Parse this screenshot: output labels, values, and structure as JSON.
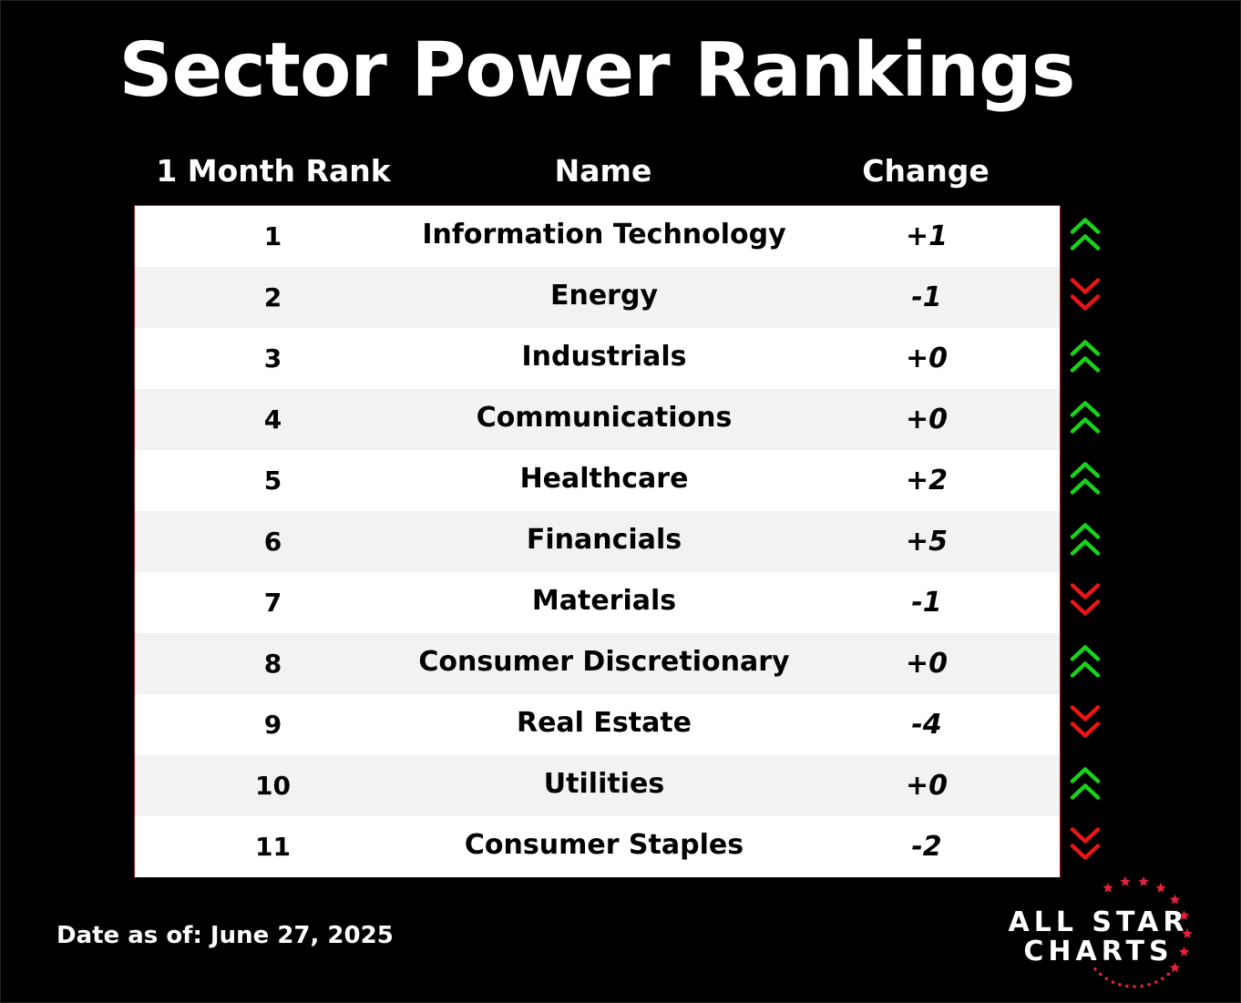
{
  "title": "Sector Power Rankings",
  "headers": {
    "rank": "1 Month Rank",
    "name": "Name",
    "change": "Change"
  },
  "colors": {
    "up": "#19d21b",
    "down": "#e81616",
    "border": "#b01818",
    "star": "#e8203a"
  },
  "chart_data": {
    "type": "table",
    "title": "Sector Power Rankings",
    "columns": [
      "1 Month Rank",
      "Name",
      "Change"
    ],
    "rows": [
      {
        "rank": "1",
        "name": "Information Technology",
        "change": "+1",
        "direction": "up"
      },
      {
        "rank": "2",
        "name": "Energy",
        "change": "-1",
        "direction": "down"
      },
      {
        "rank": "3",
        "name": "Industrials",
        "change": "+0",
        "direction": "up"
      },
      {
        "rank": "4",
        "name": "Communications",
        "change": "+0",
        "direction": "up"
      },
      {
        "rank": "5",
        "name": "Healthcare",
        "change": "+2",
        "direction": "up"
      },
      {
        "rank": "6",
        "name": "Financials",
        "change": "+5",
        "direction": "up"
      },
      {
        "rank": "7",
        "name": "Materials",
        "change": "-1",
        "direction": "down"
      },
      {
        "rank": "8",
        "name": "Consumer Discretionary",
        "change": "+0",
        "direction": "up"
      },
      {
        "rank": "9",
        "name": "Real Estate",
        "change": "-4",
        "direction": "down"
      },
      {
        "rank": "10",
        "name": "Utilities",
        "change": "+0",
        "direction": "up"
      },
      {
        "rank": "11",
        "name": "Consumer Staples",
        "change": "-2",
        "direction": "down"
      }
    ]
  },
  "footer": {
    "date": "Date as of: June 27, 2025"
  },
  "logo": {
    "line1": "ALL STAR",
    "line2": "CHARTS",
    "icon": "star-ring-icon"
  }
}
